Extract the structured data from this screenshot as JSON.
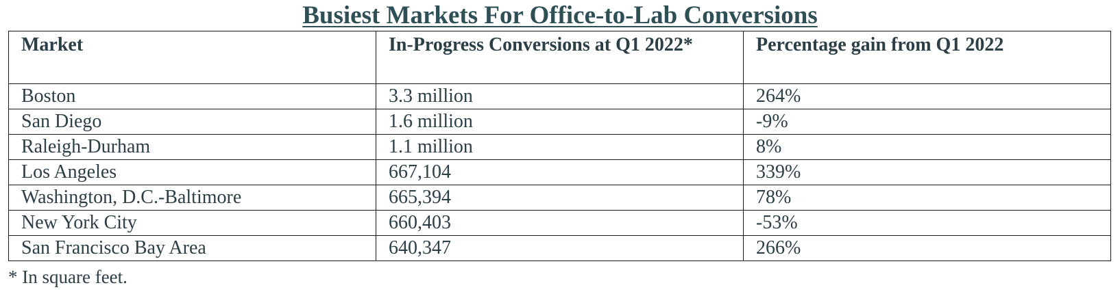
{
  "title": "Busiest Markets For Office-to-Lab Conversions",
  "table": {
    "headers": [
      "Market",
      "In-Progress Conversions at Q1 2022*",
      "Percentage gain from Q1 2022"
    ],
    "rows": [
      [
        "Boston",
        "3.3 million",
        "264%"
      ],
      [
        "San Diego",
        "1.6 million",
        "-9%"
      ],
      [
        "Raleigh-Durham",
        "1.1 million",
        "8%"
      ],
      [
        "Los Angeles",
        "667,104",
        "339%"
      ],
      [
        "Washington, D.C.-Baltimore",
        "665,394",
        "78%"
      ],
      [
        "New York City",
        "660,403",
        "-53%"
      ],
      [
        "San Francisco Bay Area",
        "640,347",
        "266%"
      ]
    ]
  },
  "footnote": "* In square feet.",
  "colors": {
    "text": "#2c3e46",
    "title": "#2f4f57",
    "border": "#1a1a1a"
  }
}
